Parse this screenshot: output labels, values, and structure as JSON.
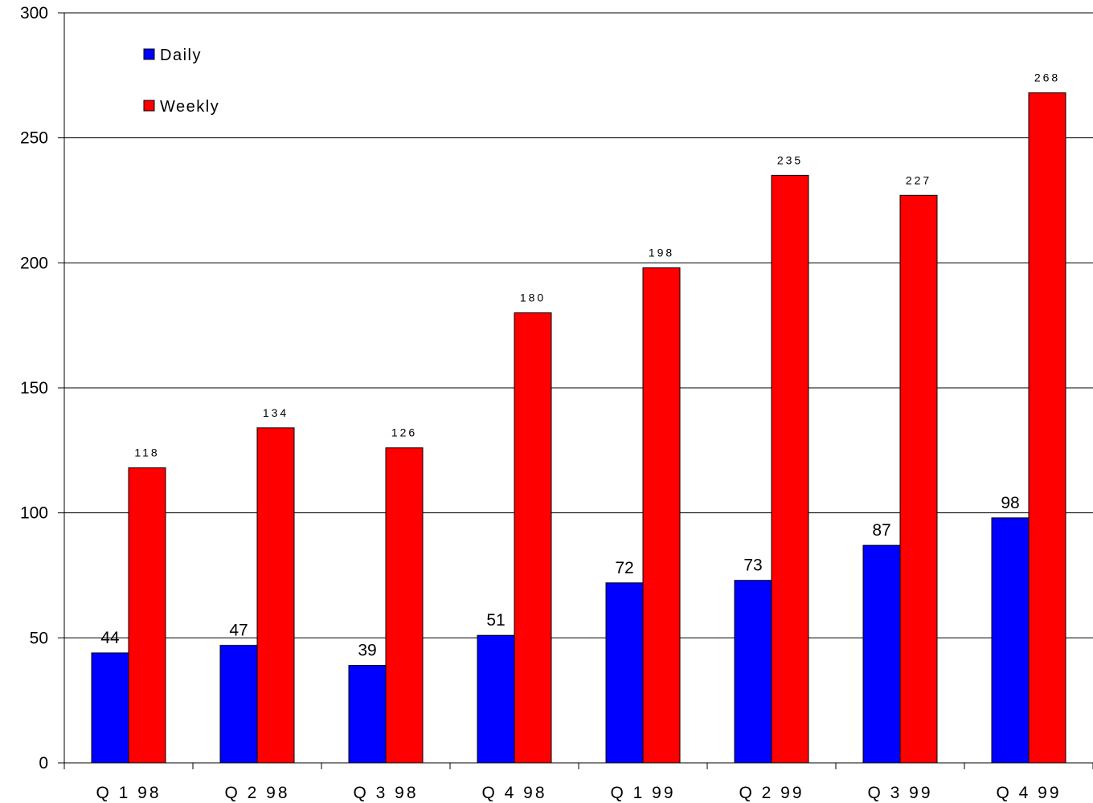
{
  "chart_data": {
    "type": "bar",
    "categories": [
      "Q 1 98",
      "Q 2 98",
      "Q 3 98",
      "Q 4 98",
      "Q 1 99",
      "Q 2 99",
      "Q 3 99",
      "Q 4 99"
    ],
    "series": [
      {
        "name": "Daily",
        "color": "#0000ff",
        "values": [
          44,
          47,
          39,
          51,
          72,
          73,
          87,
          98
        ]
      },
      {
        "name": "Weekly",
        "color": "#ff0000",
        "values": [
          118,
          134,
          126,
          180,
          198,
          235,
          227,
          268
        ]
      }
    ],
    "yticks": [
      0,
      50,
      100,
      150,
      200,
      250,
      300
    ],
    "ylim": [
      0,
      300
    ],
    "grid": true,
    "legend": "top-left"
  }
}
